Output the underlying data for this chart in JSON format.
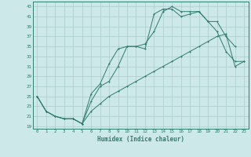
{
  "xlabel": "Humidex (Indice chaleur)",
  "bg_color": "#cce8e8",
  "grid_color": "#aacccc",
  "line_color": "#2e7d6e",
  "xlim": [
    -0.5,
    23.5
  ],
  "ylim": [
    18.5,
    44
  ],
  "yticks": [
    19,
    21,
    23,
    25,
    27,
    29,
    31,
    33,
    35,
    37,
    39,
    41,
    43
  ],
  "xticks": [
    0,
    1,
    2,
    3,
    4,
    5,
    6,
    7,
    8,
    9,
    10,
    11,
    12,
    13,
    14,
    15,
    16,
    17,
    18,
    19,
    20,
    21,
    22,
    23
  ],
  "line1_x": [
    0,
    1,
    2,
    3,
    4,
    5,
    6,
    7,
    8,
    9,
    10,
    11,
    12,
    13,
    14,
    15,
    16,
    17,
    18,
    19,
    20,
    21,
    22
  ],
  "line1_y": [
    25,
    22,
    21,
    20.5,
    20.5,
    19.5,
    25.5,
    27.5,
    31.5,
    34.5,
    35,
    35,
    34.5,
    41.5,
    42.5,
    42.5,
    41,
    41.5,
    42,
    40,
    40,
    37,
    35
  ],
  "line2_x": [
    0,
    1,
    2,
    3,
    4,
    5,
    6,
    7,
    8,
    9,
    10,
    11,
    12,
    13,
    14,
    15,
    16,
    17,
    18,
    19,
    20,
    21,
    22,
    23
  ],
  "line2_y": [
    25,
    22,
    21,
    20.5,
    20.5,
    19.5,
    24,
    27,
    28,
    31,
    35,
    35,
    35.5,
    38,
    42,
    43,
    42,
    42,
    42,
    40,
    38,
    34,
    32,
    32
  ],
  "line3_x": [
    0,
    1,
    2,
    3,
    4,
    5,
    6,
    7,
    8,
    9,
    10,
    11,
    12,
    13,
    14,
    15,
    16,
    17,
    18,
    19,
    20,
    21,
    22,
    23
  ],
  "line3_y": [
    25,
    22,
    21,
    20.5,
    20.5,
    19.5,
    22,
    23.5,
    25,
    26,
    27,
    28,
    29,
    30,
    31,
    32,
    33,
    34,
    35,
    36,
    37,
    37.5,
    31,
    32
  ]
}
